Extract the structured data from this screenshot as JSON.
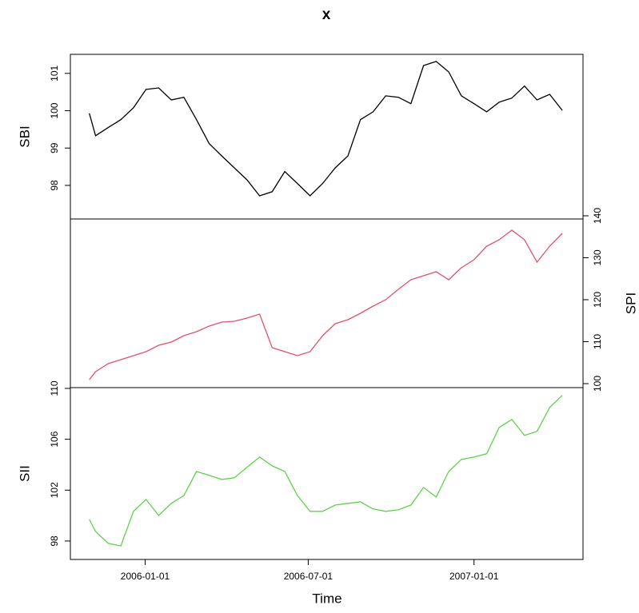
{
  "chart_data": {
    "type": "line",
    "title": "x",
    "xlabel": "Time",
    "x": [
      "2005-10-31",
      "2005-11-07",
      "2005-11-21",
      "2005-12-05",
      "2005-12-19",
      "2006-01-02",
      "2006-01-16",
      "2006-01-30",
      "2006-02-13",
      "2006-02-27",
      "2006-03-13",
      "2006-03-27",
      "2006-04-10",
      "2006-04-24",
      "2006-05-08",
      "2006-05-22",
      "2006-06-05",
      "2006-06-19",
      "2006-07-03",
      "2006-07-17",
      "2006-07-31",
      "2006-08-14",
      "2006-08-28",
      "2006-09-11",
      "2006-09-25",
      "2006-10-09",
      "2006-10-23",
      "2006-11-06",
      "2006-11-20",
      "2006-12-04",
      "2006-12-18",
      "2007-01-01",
      "2007-01-15",
      "2007-01-29",
      "2007-02-12",
      "2007-02-26",
      "2007-03-12",
      "2007-03-26",
      "2007-04-09"
    ],
    "xlim": [
      "2005-10-10",
      "2007-05-02"
    ],
    "xticks": [
      "2006-01-01",
      "2006-07-01",
      "2007-01-01"
    ],
    "series": [
      {
        "name": "SBI",
        "color": "#000000",
        "side": "left",
        "ylim": [
          97.1,
          101.51
        ],
        "yticks": [
          98,
          99,
          100,
          101
        ],
        "values": [
          99.93,
          99.33,
          99.55,
          99.76,
          100.08,
          100.57,
          100.61,
          100.29,
          100.36,
          99.76,
          99.12,
          98.79,
          98.47,
          98.15,
          97.72,
          97.83,
          98.37,
          98.05,
          97.72,
          98.05,
          98.47,
          98.79,
          99.76,
          99.97,
          100.4,
          100.36,
          100.19,
          101.21,
          101.32,
          101.04,
          100.4,
          100.19,
          99.97,
          100.23,
          100.34,
          100.66,
          100.29,
          100.44,
          100.01
        ]
      },
      {
        "name": "SPI",
        "color": "#DF536B",
        "side": "right",
        "ylim": [
          99.05,
          139.24
        ],
        "yticks": [
          100,
          110,
          120,
          130,
          140
        ],
        "values": [
          100.95,
          102.86,
          104.76,
          105.71,
          106.67,
          107.62,
          109.14,
          109.9,
          111.43,
          112.38,
          113.71,
          114.67,
          114.86,
          115.62,
          116.57,
          108.57,
          107.62,
          106.67,
          107.62,
          111.43,
          114.29,
          115.24,
          116.76,
          118.48,
          120,
          122.48,
          124.76,
          125.71,
          126.67,
          124.76,
          127.62,
          129.52,
          132.76,
          134.29,
          136.57,
          134.29,
          128.95,
          132.76,
          135.81
        ]
      },
      {
        "name": "SII",
        "color": "#61D04F",
        "side": "left",
        "ylim": [
          96.55,
          110.06
        ],
        "yticks": [
          98,
          102,
          106,
          110
        ],
        "values": [
          99.7,
          98.75,
          97.81,
          97.62,
          100.33,
          101.27,
          100.01,
          100.96,
          101.58,
          103.47,
          103.16,
          102.84,
          102.97,
          103.79,
          104.6,
          103.91,
          103.47,
          101.58,
          100.33,
          100.33,
          100.83,
          100.96,
          101.08,
          100.52,
          100.33,
          100.45,
          100.83,
          102.21,
          101.46,
          103.47,
          104.42,
          104.6,
          104.86,
          106.93,
          107.56,
          106.3,
          106.62,
          108.5,
          109.45
        ]
      }
    ]
  }
}
